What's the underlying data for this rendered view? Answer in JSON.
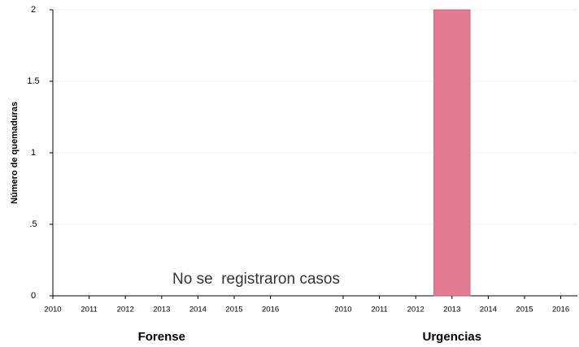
{
  "chart_data": {
    "type": "bar",
    "ylabel": "Número de quemaduras",
    "ylim": [
      0,
      2
    ],
    "yticks": [
      0,
      {
        "value": 0.5,
        "label": ".5"
      },
      1,
      1.5,
      2
    ],
    "grid": true,
    "color": "#e07b91",
    "panels": [
      {
        "title": "Forense",
        "categories": [
          "2010",
          "2011",
          "2012",
          "2013",
          "2014",
          "2015",
          "2016"
        ],
        "values": [
          0,
          0,
          0,
          0,
          0,
          0,
          0
        ],
        "annotation": "No se  registraron casos"
      },
      {
        "title": "Urgencias",
        "categories": [
          "2010",
          "2011",
          "2012",
          "2013",
          "2014",
          "2015",
          "2016"
        ],
        "values": [
          0,
          0,
          0,
          2,
          0,
          0,
          0
        ]
      }
    ]
  }
}
